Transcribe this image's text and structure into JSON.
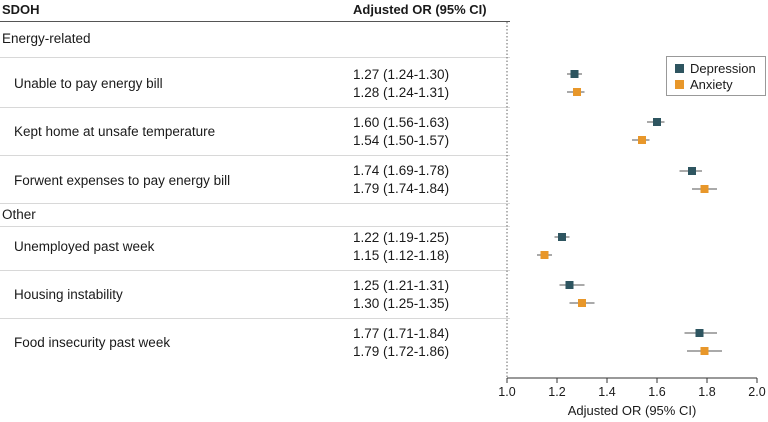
{
  "table": {
    "header_left": "SDOH",
    "header_right": "Adjusted OR (95% CI)",
    "sections": [
      {
        "title": "Energy-related",
        "rows": [
          {
            "label": "Unable to pay energy bill",
            "depression": "1.27 (1.24-1.30)",
            "anxiety": "1.28 (1.24-1.31)"
          },
          {
            "label": "Kept home at unsafe temperature",
            "depression": "1.60 (1.56-1.63)",
            "anxiety": "1.54 (1.50-1.57)"
          },
          {
            "label": "Forwent expenses to pay energy bill",
            "depression": "1.74 (1.69-1.78)",
            "anxiety": "1.79 (1.74-1.84)"
          }
        ]
      },
      {
        "title": "Other",
        "rows": [
          {
            "label": "Unemployed past week",
            "depression": "1.22 (1.19-1.25)",
            "anxiety": "1.15 (1.12-1.18)"
          },
          {
            "label": "Housing instability",
            "depression": "1.25 (1.21-1.31)",
            "anxiety": "1.30 (1.25-1.35)"
          },
          {
            "label": "Food insecurity past week",
            "depression": "1.77 (1.71-1.84)",
            "anxiety": "1.79 (1.72-1.86)"
          }
        ]
      }
    ]
  },
  "chart_data": {
    "type": "scatter",
    "subtype": "forest",
    "title": "",
    "xlabel": "Adjusted OR (95% CI)",
    "ylabel": "",
    "xlim": [
      1.0,
      2.0
    ],
    "xticks": [
      "1.0",
      "1.2",
      "1.4",
      "1.6",
      "1.8",
      "2.0"
    ],
    "reference_line": 1.0,
    "legend_position": "top-right",
    "categories": [
      "Unable to pay energy bill",
      "Kept home at unsafe temperature",
      "Forwent expenses to pay energy bill",
      "Unemployed past week",
      "Housing instability",
      "Food insecurity past week"
    ],
    "series": [
      {
        "name": "Depression",
        "color": "#2e5560",
        "values": [
          1.27,
          1.6,
          1.74,
          1.22,
          1.25,
          1.77
        ],
        "lower": [
          1.24,
          1.56,
          1.69,
          1.19,
          1.21,
          1.71
        ],
        "upper": [
          1.3,
          1.63,
          1.78,
          1.25,
          1.31,
          1.84
        ]
      },
      {
        "name": "Anxiety",
        "color": "#e8972a",
        "values": [
          1.28,
          1.54,
          1.79,
          1.15,
          1.3,
          1.79
        ],
        "lower": [
          1.24,
          1.5,
          1.74,
          1.12,
          1.25,
          1.72
        ],
        "upper": [
          1.31,
          1.57,
          1.84,
          1.18,
          1.35,
          1.86
        ]
      }
    ]
  }
}
